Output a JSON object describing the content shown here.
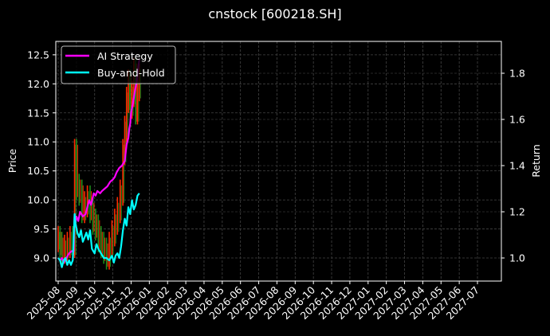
{
  "chart_data": {
    "type": "line",
    "title": "cnstock [600218.SH]",
    "xlabel": "",
    "ylabel": "Price",
    "ylabel_right": "Return",
    "ylim": [
      8.77,
      12.75
    ],
    "ylim_right": [
      0.9,
      1.94
    ],
    "yticks": [
      "9.0",
      "9.5",
      "10.0",
      "10.5",
      "11.0",
      "11.5",
      "12.0",
      "12.5"
    ],
    "yticks_right": [
      "1.0",
      "1.2",
      "1.4",
      "1.6",
      "1.8"
    ],
    "x_ticks": [
      "2025-08",
      "2025-09",
      "2025-10",
      "2025-11",
      "2025-12",
      "2026-01",
      "2026-02",
      "2026-03",
      "2026-04",
      "2026-05",
      "2026-06",
      "2026-07",
      "2026-08",
      "2026-09",
      "2026-10",
      "2026-11",
      "2026-12",
      "2027-01",
      "2027-02",
      "2027-03",
      "2027-04",
      "2027-05",
      "2027-06",
      "2027-07"
    ],
    "grid": true,
    "legend_position": "upper left",
    "legend": [
      "AI Strategy",
      "Buy-and-Hold"
    ],
    "series": [
      {
        "name": "AI Strategy",
        "axis": "right",
        "color": "#ff00ff",
        "x_month_offset": [
          0.0,
          0.1,
          0.2,
          0.3,
          0.45,
          0.6,
          0.75,
          0.85,
          0.9,
          0.92,
          1.0,
          1.1,
          1.2,
          1.35,
          1.5,
          1.6,
          1.7,
          1.8,
          1.95,
          2.05,
          2.15,
          2.3,
          2.4,
          2.55,
          2.7,
          2.85,
          3.0,
          3.1,
          3.2,
          3.35,
          3.5,
          3.65,
          3.75,
          3.85,
          3.9,
          3.95,
          4.0,
          4.1,
          4.2,
          4.3,
          4.35,
          4.45
        ],
        "values": [
          1.0,
          0.99,
          1.0,
          0.98,
          1.0,
          1.02,
          1.03,
          1.03,
          1.19,
          1.14,
          1.18,
          1.16,
          1.2,
          1.18,
          1.19,
          1.22,
          1.25,
          1.23,
          1.28,
          1.27,
          1.29,
          1.28,
          1.29,
          1.3,
          1.31,
          1.33,
          1.34,
          1.35,
          1.37,
          1.39,
          1.4,
          1.42,
          1.49,
          1.52,
          1.56,
          1.58,
          1.63,
          1.67,
          1.72,
          1.76,
          1.8,
          1.86
        ]
      },
      {
        "name": "Buy-and-Hold",
        "axis": "right",
        "color": "#00ffff",
        "x_month_offset": [
          0.0,
          0.1,
          0.2,
          0.3,
          0.4,
          0.5,
          0.6,
          0.7,
          0.8,
          0.9,
          0.95,
          1.05,
          1.15,
          1.25,
          1.35,
          1.45,
          1.55,
          1.65,
          1.75,
          1.85,
          2.0,
          2.1,
          2.2,
          2.35,
          2.5,
          2.65,
          2.8,
          2.95,
          3.05,
          3.15,
          3.25,
          3.35,
          3.45,
          3.55,
          3.65,
          3.75,
          3.85,
          3.95,
          4.05,
          4.15,
          4.25,
          4.35,
          4.45
        ],
        "values": [
          1.0,
          0.99,
          0.96,
          0.99,
          1.0,
          0.97,
          0.99,
          0.97,
          0.99,
          1.19,
          1.15,
          1.11,
          1.09,
          1.12,
          1.07,
          1.09,
          1.11,
          1.08,
          1.12,
          1.04,
          1.02,
          1.06,
          1.04,
          1.02,
          1.0,
          1.0,
          0.99,
          1.01,
          0.98,
          1.01,
          1.02,
          1.0,
          1.05,
          1.12,
          1.17,
          1.14,
          1.22,
          1.19,
          1.25,
          1.21,
          1.23,
          1.27,
          1.28
        ]
      },
      {
        "name": "Price (OHLC bars)",
        "axis": "left",
        "colors": {
          "up": "#ff2a00",
          "down": "#1a8c1a"
        },
        "x_month_offset": [
          0.0,
          0.1,
          0.2,
          0.35,
          0.5,
          0.65,
          0.8,
          0.9,
          1.0,
          1.15,
          1.3,
          1.45,
          1.6,
          1.75,
          1.9,
          2.05,
          2.2,
          2.35,
          2.5,
          2.65,
          2.8,
          2.95,
          3.1,
          3.25,
          3.4,
          3.55,
          3.65,
          3.75,
          3.85,
          3.95,
          4.05,
          4.15,
          4.25,
          4.35,
          4.45
        ],
        "close": [
          9.3,
          9.2,
          9.1,
          9.15,
          9.2,
          9.3,
          9.2,
          10.8,
          10.2,
          10.1,
          9.8,
          9.9,
          10.0,
          9.8,
          9.6,
          9.5,
          9.3,
          9.2,
          9.1,
          9.0,
          9.2,
          9.4,
          9.6,
          9.8,
          10.1,
          10.8,
          11.2,
          11.7,
          12.0,
          11.6,
          11.8,
          12.2,
          11.5,
          11.9,
          12.1
        ]
      }
    ]
  }
}
